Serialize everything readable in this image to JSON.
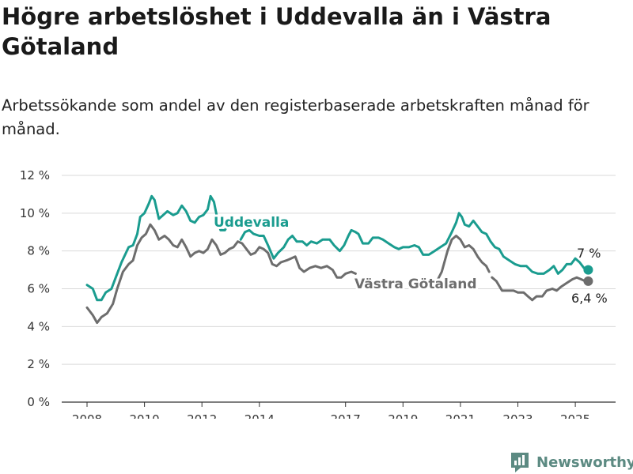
{
  "header": {
    "title": "Högre arbetslöshet i Uddevalla än i Västra Götaland",
    "subtitle": "Arbetssökande som andel av den registerbaserade arbetskraften månad för månad."
  },
  "brand": {
    "name": "Newsworthy",
    "color": "#5c8a82"
  },
  "chart_data": {
    "type": "line",
    "x_tick_labels": [
      "2008",
      "2010",
      "2012",
      "2014",
      "2017",
      "2019",
      "2021",
      "2023",
      "2025"
    ],
    "y_tick_labels": [
      "0 %",
      "2 %",
      "4 %",
      "6 %",
      "8 %",
      "10 %",
      "12 %"
    ],
    "ylim": [
      0,
      12
    ],
    "xlim": [
      2007.5,
      2026.3
    ],
    "grid": true,
    "series": [
      {
        "name": "Uddevalla",
        "color": "#1a9c8f",
        "end_label": "7 %",
        "points": [
          [
            2008.0,
            6.2
          ],
          [
            2008.2,
            6.0
          ],
          [
            2008.35,
            5.4
          ],
          [
            2008.5,
            5.4
          ],
          [
            2008.65,
            5.8
          ],
          [
            2008.85,
            6.0
          ],
          [
            2009.0,
            6.6
          ],
          [
            2009.2,
            7.4
          ],
          [
            2009.45,
            8.2
          ],
          [
            2009.6,
            8.3
          ],
          [
            2009.75,
            8.9
          ],
          [
            2009.85,
            9.8
          ],
          [
            2010.0,
            10.0
          ],
          [
            2010.15,
            10.5
          ],
          [
            2010.25,
            10.9
          ],
          [
            2010.35,
            10.7
          ],
          [
            2010.5,
            9.7
          ],
          [
            2010.65,
            9.9
          ],
          [
            2010.8,
            10.1
          ],
          [
            2011.0,
            9.9
          ],
          [
            2011.15,
            10.0
          ],
          [
            2011.3,
            10.4
          ],
          [
            2011.45,
            10.1
          ],
          [
            2011.6,
            9.6
          ],
          [
            2011.75,
            9.5
          ],
          [
            2011.9,
            9.8
          ],
          [
            2012.05,
            9.9
          ],
          [
            2012.2,
            10.2
          ],
          [
            2012.3,
            10.9
          ],
          [
            2012.42,
            10.6
          ],
          [
            2012.55,
            9.6
          ],
          [
            2012.65,
            9.1
          ],
          [
            2012.8,
            9.1
          ],
          [
            2012.95,
            9.5
          ]
        ],
        "points_b": [
          [
            2013.35,
            8.6
          ],
          [
            2013.5,
            9.0
          ],
          [
            2013.65,
            9.1
          ],
          [
            2013.8,
            8.9
          ],
          [
            2014.0,
            8.8
          ],
          [
            2014.15,
            8.8
          ],
          [
            2014.3,
            8.3
          ],
          [
            2014.5,
            7.6
          ],
          [
            2014.65,
            7.9
          ],
          [
            2014.85,
            8.2
          ],
          [
            2015.0,
            8.6
          ],
          [
            2015.15,
            8.8
          ],
          [
            2015.3,
            8.5
          ],
          [
            2015.5,
            8.5
          ],
          [
            2015.65,
            8.3
          ],
          [
            2015.8,
            8.5
          ],
          [
            2016.0,
            8.4
          ],
          [
            2016.2,
            8.6
          ],
          [
            2016.45,
            8.6
          ],
          [
            2016.6,
            8.3
          ],
          [
            2016.8,
            8.0
          ],
          [
            2016.95,
            8.3
          ],
          [
            2017.1,
            8.8
          ],
          [
            2017.2,
            9.1
          ],
          [
            2017.35,
            9.0
          ],
          [
            2017.45,
            8.9
          ],
          [
            2017.6,
            8.4
          ],
          [
            2017.8,
            8.4
          ],
          [
            2017.95,
            8.7
          ],
          [
            2018.15,
            8.7
          ],
          [
            2018.3,
            8.6
          ],
          [
            2018.5,
            8.4
          ],
          [
            2018.7,
            8.2
          ],
          [
            2018.85,
            8.1
          ],
          [
            2019.0,
            8.2
          ],
          [
            2019.2,
            8.2
          ],
          [
            2019.4,
            8.3
          ],
          [
            2019.55,
            8.2
          ],
          [
            2019.7,
            7.8
          ],
          [
            2019.9,
            7.8
          ],
          [
            2020.1,
            8.0
          ],
          [
            2020.3,
            8.2
          ],
          [
            2020.5,
            8.4
          ],
          [
            2020.7,
            9.0
          ],
          [
            2020.85,
            9.5
          ],
          [
            2020.95,
            10.0
          ],
          [
            2021.05,
            9.8
          ],
          [
            2021.15,
            9.4
          ],
          [
            2021.3,
            9.3
          ],
          [
            2021.45,
            9.6
          ],
          [
            2021.6,
            9.3
          ],
          [
            2021.75,
            9.0
          ],
          [
            2021.9,
            8.9
          ],
          [
            2022.05,
            8.5
          ],
          [
            2022.2,
            8.2
          ],
          [
            2022.35,
            8.1
          ],
          [
            2022.5,
            7.7
          ],
          [
            2022.7,
            7.5
          ],
          [
            2022.9,
            7.3
          ],
          [
            2023.1,
            7.2
          ],
          [
            2023.3,
            7.2
          ],
          [
            2023.5,
            6.9
          ],
          [
            2023.7,
            6.8
          ],
          [
            2023.9,
            6.8
          ],
          [
            2024.1,
            7.0
          ],
          [
            2024.25,
            7.2
          ],
          [
            2024.4,
            6.8
          ],
          [
            2024.55,
            7.0
          ],
          [
            2024.7,
            7.3
          ],
          [
            2024.85,
            7.3
          ],
          [
            2025.0,
            7.6
          ],
          [
            2025.15,
            7.4
          ],
          [
            2025.3,
            7.1
          ],
          [
            2025.45,
            7.0
          ]
        ]
      },
      {
        "name": "Västra Götaland",
        "color": "#6d6d6d",
        "end_label": "6,4 %",
        "points": [
          [
            2008.0,
            5.0
          ],
          [
            2008.2,
            4.6
          ],
          [
            2008.35,
            4.2
          ],
          [
            2008.5,
            4.5
          ],
          [
            2008.7,
            4.7
          ],
          [
            2008.9,
            5.2
          ],
          [
            2009.05,
            6.0
          ],
          [
            2009.25,
            6.9
          ],
          [
            2009.45,
            7.3
          ],
          [
            2009.6,
            7.5
          ],
          [
            2009.75,
            8.3
          ],
          [
            2009.9,
            8.7
          ],
          [
            2010.05,
            8.9
          ],
          [
            2010.2,
            9.4
          ],
          [
            2010.35,
            9.1
          ],
          [
            2010.5,
            8.6
          ],
          [
            2010.7,
            8.8
          ],
          [
            2010.85,
            8.6
          ],
          [
            2011.0,
            8.3
          ],
          [
            2011.15,
            8.2
          ],
          [
            2011.3,
            8.6
          ],
          [
            2011.45,
            8.2
          ],
          [
            2011.6,
            7.7
          ],
          [
            2011.75,
            7.9
          ],
          [
            2011.9,
            8.0
          ],
          [
            2012.05,
            7.9
          ],
          [
            2012.2,
            8.1
          ],
          [
            2012.35,
            8.6
          ],
          [
            2012.5,
            8.3
          ],
          [
            2012.65,
            7.8
          ],
          [
            2012.8,
            7.9
          ],
          [
            2012.95,
            8.1
          ],
          [
            2013.1,
            8.2
          ],
          [
            2013.25,
            8.5
          ],
          [
            2013.4,
            8.4
          ],
          [
            2013.55,
            8.1
          ],
          [
            2013.7,
            7.8
          ],
          [
            2013.85,
            7.9
          ],
          [
            2014.0,
            8.2
          ],
          [
            2014.15,
            8.1
          ],
          [
            2014.3,
            7.9
          ],
          [
            2014.45,
            7.3
          ],
          [
            2014.6,
            7.2
          ],
          [
            2014.75,
            7.4
          ],
          [
            2014.95,
            7.5
          ],
          [
            2015.1,
            7.6
          ],
          [
            2015.25,
            7.7
          ],
          [
            2015.4,
            7.1
          ],
          [
            2015.55,
            6.9
          ],
          [
            2015.75,
            7.1
          ],
          [
            2015.95,
            7.2
          ],
          [
            2016.15,
            7.1
          ],
          [
            2016.35,
            7.2
          ],
          [
            2016.55,
            7.0
          ],
          [
            2016.7,
            6.6
          ],
          [
            2016.85,
            6.6
          ],
          [
            2017.0,
            6.8
          ],
          [
            2017.2,
            6.9
          ],
          [
            2017.35,
            6.8
          ]
        ],
        "points_b": [
          [
            2019.95,
            6.1
          ],
          [
            2020.15,
            6.3
          ],
          [
            2020.35,
            6.9
          ],
          [
            2020.55,
            8.0
          ],
          [
            2020.7,
            8.6
          ],
          [
            2020.85,
            8.8
          ],
          [
            2021.0,
            8.6
          ],
          [
            2021.15,
            8.2
          ],
          [
            2021.3,
            8.3
          ],
          [
            2021.45,
            8.1
          ],
          [
            2021.6,
            7.7
          ],
          [
            2021.75,
            7.4
          ],
          [
            2021.9,
            7.2
          ],
          [
            2022.0,
            6.9
          ]
        ],
        "points_c": [
          [
            2022.1,
            6.6
          ],
          [
            2022.25,
            6.4
          ],
          [
            2022.45,
            5.9
          ],
          [
            2022.65,
            5.9
          ],
          [
            2022.85,
            5.9
          ],
          [
            2023.0,
            5.8
          ],
          [
            2023.2,
            5.8
          ],
          [
            2023.35,
            5.6
          ],
          [
            2023.5,
            5.4
          ],
          [
            2023.65,
            5.6
          ],
          [
            2023.85,
            5.6
          ],
          [
            2024.0,
            5.9
          ],
          [
            2024.2,
            6.0
          ],
          [
            2024.35,
            5.9
          ],
          [
            2024.5,
            6.1
          ],
          [
            2024.7,
            6.3
          ],
          [
            2024.9,
            6.5
          ],
          [
            2025.05,
            6.6
          ],
          [
            2025.2,
            6.5
          ],
          [
            2025.35,
            6.4
          ],
          [
            2025.45,
            6.4
          ]
        ]
      }
    ]
  }
}
